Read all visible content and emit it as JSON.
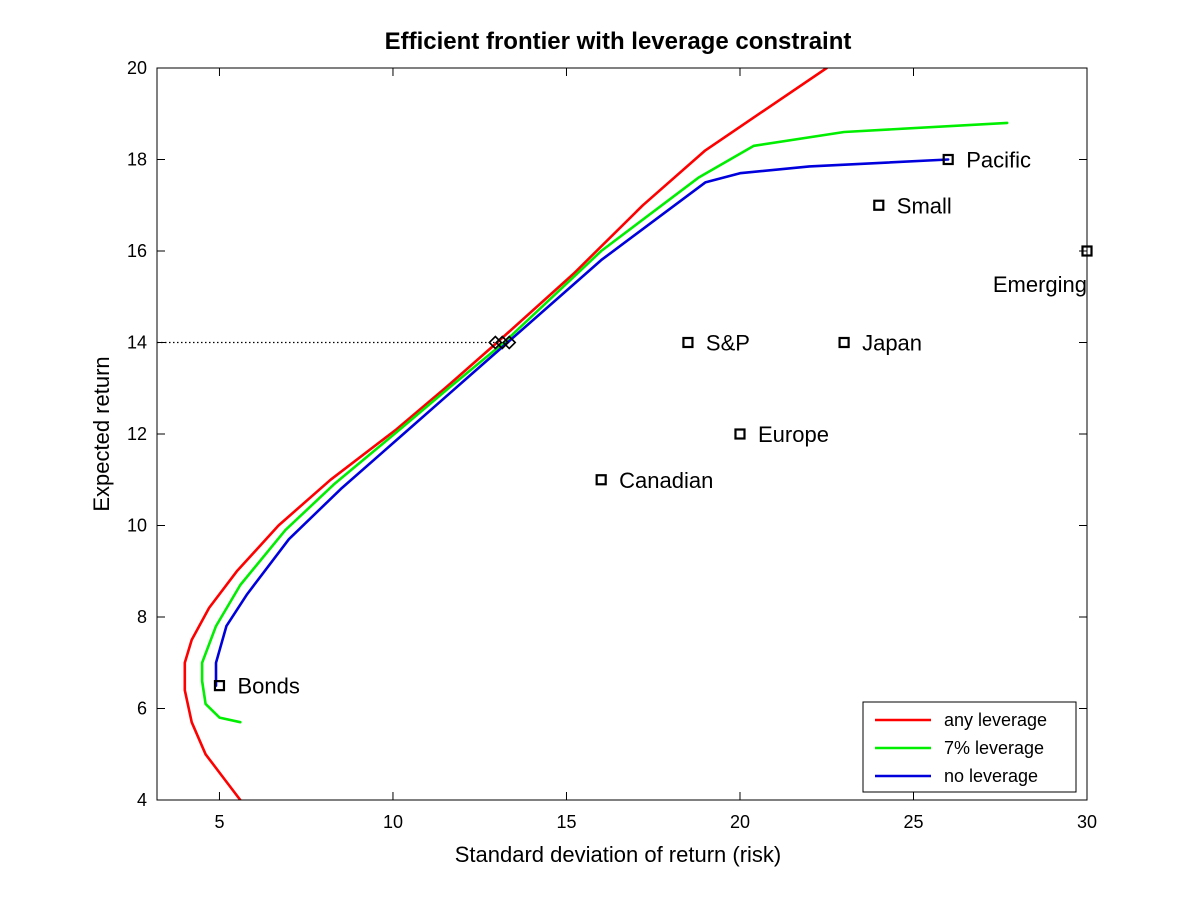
{
  "chart_data": {
    "type": "line",
    "title": "Efficient frontier with leverage constraint",
    "xlabel": "Standard deviation of return (risk)",
    "ylabel": "Expected return",
    "xlim": [
      3.2,
      30
    ],
    "ylim": [
      4,
      20
    ],
    "xticks": [
      5,
      10,
      15,
      20,
      25,
      30
    ],
    "yticks": [
      4,
      6,
      8,
      10,
      12,
      14,
      16,
      18,
      20
    ],
    "grid": false,
    "legend_position": "bottom-right",
    "series": [
      {
        "name": "any leverage",
        "color": "#ff0000",
        "points": [
          [
            5.6,
            4.0
          ],
          [
            5.1,
            4.5
          ],
          [
            4.6,
            5.0
          ],
          [
            4.2,
            5.7
          ],
          [
            4.0,
            6.4
          ],
          [
            4.0,
            7.0
          ],
          [
            4.2,
            7.5
          ],
          [
            4.7,
            8.2
          ],
          [
            5.5,
            9.0
          ],
          [
            6.7,
            10.0
          ],
          [
            8.2,
            11.0
          ],
          [
            10.1,
            12.1
          ],
          [
            11.5,
            13.0
          ],
          [
            13.0,
            14.0
          ],
          [
            15.2,
            15.5
          ],
          [
            17.2,
            17.0
          ],
          [
            19.0,
            18.2
          ],
          [
            22.5,
            20.0
          ]
        ]
      },
      {
        "name": "7% leverage",
        "color": "#00ee00",
        "points": [
          [
            5.6,
            5.7
          ],
          [
            5.0,
            5.8
          ],
          [
            4.6,
            6.1
          ],
          [
            4.5,
            6.6
          ],
          [
            4.5,
            7.0
          ],
          [
            4.9,
            7.8
          ],
          [
            5.6,
            8.7
          ],
          [
            6.9,
            9.9
          ],
          [
            8.3,
            10.9
          ],
          [
            10.2,
            12.1
          ],
          [
            11.6,
            13.0
          ],
          [
            13.2,
            14.0
          ],
          [
            16.0,
            16.0
          ],
          [
            18.8,
            17.6
          ],
          [
            20.4,
            18.3
          ],
          [
            23.0,
            18.6
          ],
          [
            27.7,
            18.8
          ]
        ]
      },
      {
        "name": "no leverage",
        "color": "#0000dd",
        "points": [
          [
            4.9,
            6.5
          ],
          [
            4.9,
            7.0
          ],
          [
            5.2,
            7.8
          ],
          [
            5.8,
            8.5
          ],
          [
            7.0,
            9.7
          ],
          [
            8.5,
            10.8
          ],
          [
            10.3,
            12.0
          ],
          [
            11.8,
            13.0
          ],
          [
            13.3,
            14.0
          ],
          [
            16.0,
            15.8
          ],
          [
            19.0,
            17.5
          ],
          [
            20.0,
            17.7
          ],
          [
            22.0,
            17.85
          ],
          [
            26.0,
            18.0
          ]
        ]
      }
    ],
    "target_return_markers": [
      {
        "x": 12.95,
        "y": 14.0,
        "color": "#ff0000"
      },
      {
        "x": 13.15,
        "y": 14.0,
        "color": "#00aa00"
      },
      {
        "x": 13.35,
        "y": 14.0,
        "color": "#000000"
      }
    ],
    "target_return_line": {
      "x_start": 3.2,
      "x_end": 12.95,
      "y": 14
    },
    "assets": [
      {
        "name": "Bonds",
        "x": 5.0,
        "y": 6.5,
        "label_pos": "right"
      },
      {
        "name": "Canadian",
        "x": 16.0,
        "y": 11.0,
        "label_pos": "right"
      },
      {
        "name": "Europe",
        "x": 20.0,
        "y": 12.0,
        "label_pos": "right"
      },
      {
        "name": "S&P",
        "x": 18.5,
        "y": 14.0,
        "label_pos": "right"
      },
      {
        "name": "Japan",
        "x": 23.0,
        "y": 14.0,
        "label_pos": "right"
      },
      {
        "name": "Small",
        "x": 24.0,
        "y": 17.0,
        "label_pos": "right"
      },
      {
        "name": "Pacific",
        "x": 26.0,
        "y": 18.0,
        "label_pos": "right"
      },
      {
        "name": "Emerging",
        "x": 30.0,
        "y": 16.0,
        "label_pos": "below-left"
      }
    ]
  }
}
